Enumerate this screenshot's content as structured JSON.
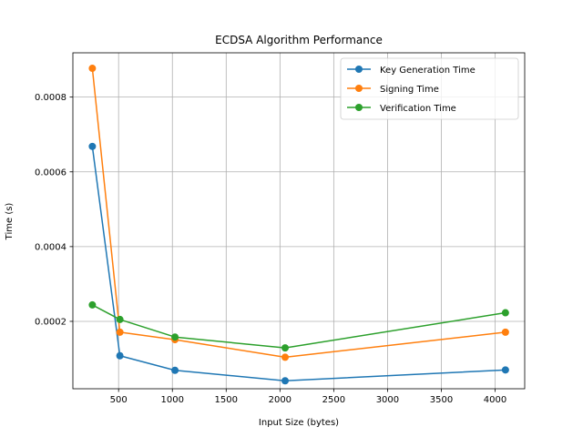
{
  "chart_data": {
    "type": "line",
    "title": "ECDSA Algorithm Performance",
    "xlabel": "Input Size (bytes)",
    "ylabel": "Time (s)",
    "xlim": [
      75,
      4275
    ],
    "ylim": [
      1.97e-05,
      0.0009185
    ],
    "x_ticks": [
      500,
      1000,
      1500,
      2000,
      2500,
      3000,
      3500,
      4000
    ],
    "x_tick_labels": [
      "500",
      "1000",
      "1500",
      "2000",
      "2500",
      "3000",
      "3500",
      "4000"
    ],
    "y_ticks": [
      0.0002,
      0.0004,
      0.0006,
      0.0008
    ],
    "y_tick_labels": [
      "0.0002",
      "0.0004",
      "0.0006",
      "0.0008"
    ],
    "grid": true,
    "legend_position": "top-right",
    "x": [
      256,
      512,
      1024,
      2048,
      4096
    ],
    "series": [
      {
        "name": "Key Generation Time",
        "color": "#1f77b4",
        "marker": "circle",
        "values": [
          0.000668,
          0.000108,
          6.9e-05,
          4.1e-05,
          7e-05
        ]
      },
      {
        "name": "Signing Time",
        "color": "#ff7f0e",
        "marker": "circle",
        "values": [
          0.000877,
          0.000171,
          0.000151,
          0.000104,
          0.000171
        ]
      },
      {
        "name": "Verification Time",
        "color": "#2ca02c",
        "marker": "circle",
        "values": [
          0.000244,
          0.000205,
          0.000158,
          0.000129,
          0.000223
        ]
      }
    ]
  }
}
